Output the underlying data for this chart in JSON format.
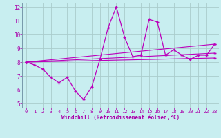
{
  "background_color": "#c8eef0",
  "grid_color": "#aacccc",
  "line_color": "#bb00bb",
  "xlabel": "Windchill (Refroidissement éolien,°C)",
  "xlim": [
    -0.5,
    23.5
  ],
  "ylim": [
    4.7,
    12.3
  ],
  "yticks": [
    5,
    6,
    7,
    8,
    9,
    10,
    11,
    12
  ],
  "xticks": [
    0,
    1,
    2,
    3,
    4,
    5,
    6,
    7,
    8,
    9,
    10,
    11,
    12,
    13,
    14,
    15,
    16,
    17,
    18,
    19,
    20,
    21,
    22,
    23
  ],
  "main_x": [
    0,
    1,
    2,
    3,
    4,
    5,
    6,
    7,
    8,
    9,
    10,
    11,
    12,
    13,
    14,
    15,
    16,
    17,
    18,
    19,
    20,
    21,
    22,
    23
  ],
  "main_y": [
    8.0,
    7.8,
    7.5,
    6.9,
    6.5,
    6.9,
    5.9,
    5.3,
    6.2,
    8.2,
    10.5,
    12.0,
    9.8,
    8.4,
    8.5,
    11.1,
    10.9,
    8.5,
    8.9,
    8.5,
    8.2,
    8.5,
    8.5,
    9.3
  ],
  "trend1_x": [
    0,
    23
  ],
  "trend1_y": [
    8.0,
    9.3
  ],
  "trend2_x": [
    0,
    23
  ],
  "trend2_y": [
    8.0,
    8.65
  ],
  "trend3_x": [
    0,
    23
  ],
  "trend3_y": [
    8.0,
    8.3
  ],
  "spine_color": "#7799aa",
  "tick_color": "#aa00aa",
  "xlabel_color": "#aa00aa"
}
